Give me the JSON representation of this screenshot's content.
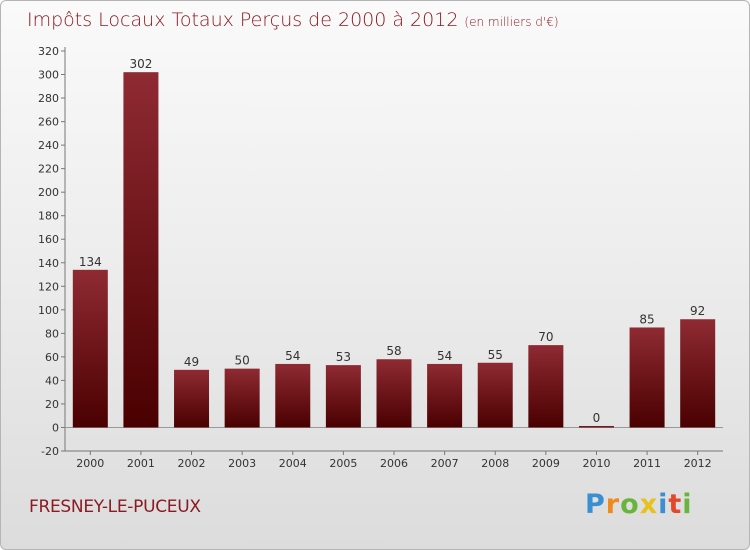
{
  "header": {
    "title": "Impôts Locaux Totaux Perçus de 2000 à 2012",
    "unit": "(en milliers d'€)"
  },
  "commune": "FRESNEY-LE-PUCEUX",
  "logo": {
    "letters": [
      "P",
      "r",
      "o",
      "x",
      "i",
      "t",
      "i"
    ],
    "colors": [
      "#3a8fd0",
      "#f08a1c",
      "#68b43c",
      "#e8c21c",
      "#3a8fd0",
      "#e04a2a",
      "#68b43c"
    ]
  },
  "colors": {
    "bar_top": "#8f2a33",
    "bar_bottom": "#4a0000",
    "text": "#8b1a22"
  },
  "chart_data": {
    "type": "bar",
    "title": "Impôts Locaux Totaux Perçus de 2000 à 2012",
    "subtitle": "(en milliers d'€)",
    "categories": [
      "2000",
      "2001",
      "2002",
      "2003",
      "2004",
      "2005",
      "2006",
      "2007",
      "2008",
      "2009",
      "2010",
      "2011",
      "2012"
    ],
    "values": [
      134,
      302,
      49,
      50,
      54,
      53,
      58,
      54,
      55,
      70,
      0,
      85,
      92
    ],
    "ylim": [
      -20,
      320
    ],
    "yticks": [
      -20,
      0,
      20,
      40,
      60,
      80,
      100,
      120,
      140,
      160,
      180,
      200,
      220,
      240,
      260,
      280,
      300,
      320
    ],
    "grid": false,
    "xlabel": "",
    "ylabel": ""
  }
}
